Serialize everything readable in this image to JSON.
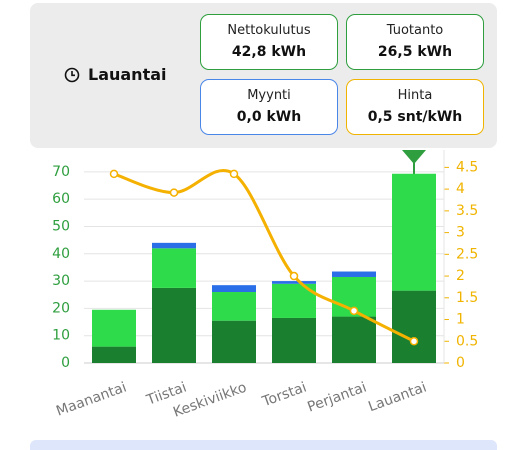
{
  "header": {
    "day": "Lauantai"
  },
  "cards": [
    {
      "label": "Nettokulutus",
      "value": "42,8 kWh",
      "color": "#2e9e3e"
    },
    {
      "label": "Tuotanto",
      "value": "26,5 kWh",
      "color": "#2e9e3e"
    },
    {
      "label": "Myynti",
      "value": "0,0 kWh",
      "color": "#4a86e8"
    },
    {
      "label": "Hinta",
      "value": "0,5 snt/kWh",
      "color": "#f0b400"
    }
  ],
  "chart_data": {
    "type": "bar",
    "categories": [
      "Maanantai",
      "Tiistai",
      "Keskiviikko",
      "Torstai",
      "Perjantai",
      "Lauantai"
    ],
    "series": [
      {
        "color": "#1a7f2e",
        "values": [
          6,
          27.5,
          15.5,
          16.5,
          17,
          26.5
        ]
      },
      {
        "color": "#2edb4a",
        "values": [
          13.5,
          14.5,
          10.5,
          12.5,
          14.5,
          42.8
        ]
      },
      {
        "color": "#2a6fe8",
        "values": [
          0,
          2,
          2.5,
          1,
          2,
          0
        ]
      },
      {
        "type": "line",
        "axis": "y2",
        "color": "#f5b100",
        "values": [
          4.35,
          3.92,
          4.35,
          2.0,
          1.2,
          0.5
        ]
      }
    ],
    "ylim": [
      0,
      78
    ],
    "yticks": [
      0,
      10,
      20,
      30,
      40,
      50,
      60,
      70
    ],
    "y2lim": [
      0,
      4.9
    ],
    "y2ticks": [
      0,
      0.5,
      1,
      1.5,
      2,
      2.5,
      3,
      3.5,
      4,
      4.5
    ],
    "ytick_color": "#2e9e3e",
    "y2tick_color": "#f0b400",
    "grid": true
  }
}
